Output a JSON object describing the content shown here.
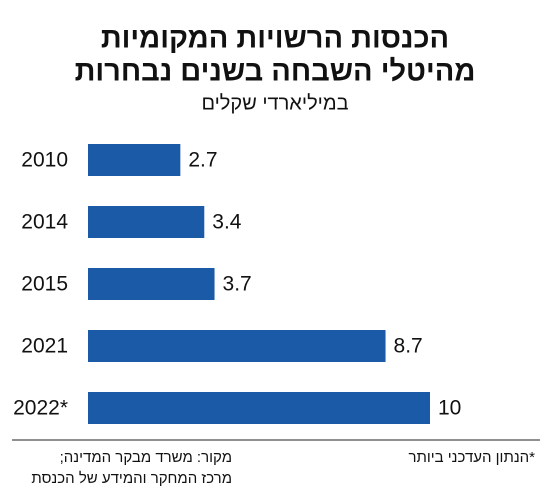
{
  "chart_data": {
    "type": "hbar",
    "title": [
      "הכנסות הרשויות המקומיות",
      "מהיטלי השבחה בשנים נבחרות"
    ],
    "subtitle": "במיליארדי שקלים",
    "categories": [
      "2010",
      "2014",
      "2015",
      "2021",
      "2022*"
    ],
    "values": [
      2.7,
      3.4,
      3.7,
      8.7,
      10
    ],
    "color": "#1b5aa6",
    "note": "*הנתון העדכני ביותר",
    "source": [
      "מקור: משרד מבקר המדינה;",
      "מרכז המחקר והמידע של הכנסת"
    ]
  }
}
